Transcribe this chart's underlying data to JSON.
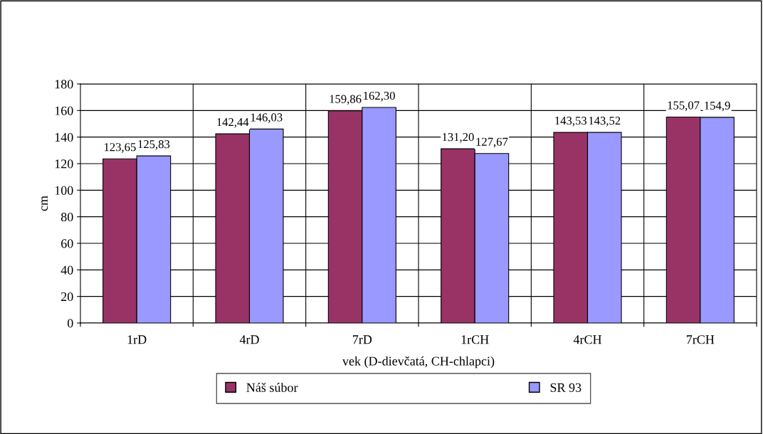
{
  "chart_data": {
    "type": "bar",
    "categories": [
      "1rD",
      "4rD",
      "7rD",
      "1rCH",
      "4rCH",
      "7rCH"
    ],
    "xlabel": "vek (D-dievčatá, CH-chlapci)",
    "ylabel": "cm",
    "series": [
      {
        "name": "Náš súbor",
        "color": "#993366",
        "values": [
          123.65,
          142.44,
          159.86,
          131.2,
          143.53,
          155.07
        ],
        "value_labels": [
          "123,65",
          "142,44",
          "159,86",
          "131,20",
          "143,53",
          "155,07"
        ]
      },
      {
        "name": "SR 93",
        "color": "#9999ff",
        "values": [
          125.83,
          146.03,
          162.3,
          127.67,
          143.52,
          154.9
        ],
        "value_labels": [
          "125,83",
          "146,03",
          "162,30",
          "127,67",
          "143,52",
          "154,9"
        ]
      }
    ],
    "ylim": [
      0,
      180
    ],
    "yticks": [
      0,
      20,
      40,
      60,
      80,
      100,
      120,
      140,
      160,
      180
    ],
    "grid": true,
    "legend": "bottom"
  }
}
